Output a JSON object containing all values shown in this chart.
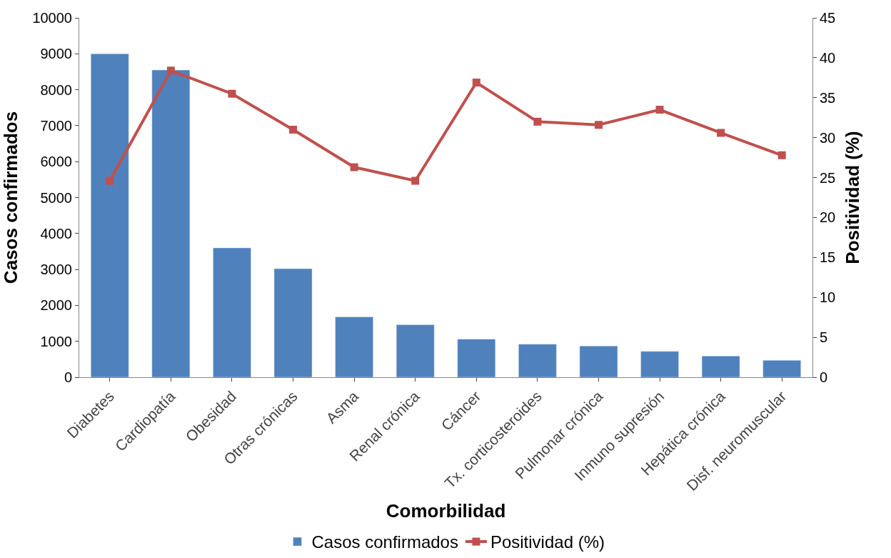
{
  "chart_data": {
    "type": "bar",
    "xlabel": "Comorbilidad",
    "ylabel": "Casos confirmados",
    "y2label": "Positividad (%)",
    "categories": [
      "Diabetes",
      "Cardiopatía",
      "Obesidad",
      "Otras crónicas",
      "Asma",
      "Renal crónica",
      "Cáncer",
      "Tx. corticosteroides",
      "Pulmonar crónica",
      "Inmuno supresión",
      "Hepática crónica",
      "Disf. neuromuscular"
    ],
    "series": [
      {
        "name": "Casos confirmados",
        "color": "#4f81bd",
        "values": [
          9000,
          8550,
          3600,
          3020,
          1680,
          1460,
          1060,
          920,
          870,
          720,
          590,
          470
        ]
      },
      {
        "name": "Positividad (%)",
        "type": "line",
        "axis": "y2",
        "color": "#c0504d",
        "marker": "square",
        "values": [
          24.6,
          38.4,
          35.5,
          31.0,
          26.3,
          24.6,
          36.9,
          32.0,
          31.6,
          33.5,
          30.6,
          27.8
        ]
      }
    ],
    "ylim": [
      0,
      10000
    ],
    "yticks": [
      0,
      1000,
      2000,
      3000,
      4000,
      5000,
      6000,
      7000,
      8000,
      9000,
      10000
    ],
    "y2lim": [
      0,
      45
    ],
    "y2ticks": [
      0,
      5,
      10,
      15,
      20,
      25,
      30,
      35,
      40,
      45
    ],
    "grid": false,
    "legend": "bottom"
  }
}
